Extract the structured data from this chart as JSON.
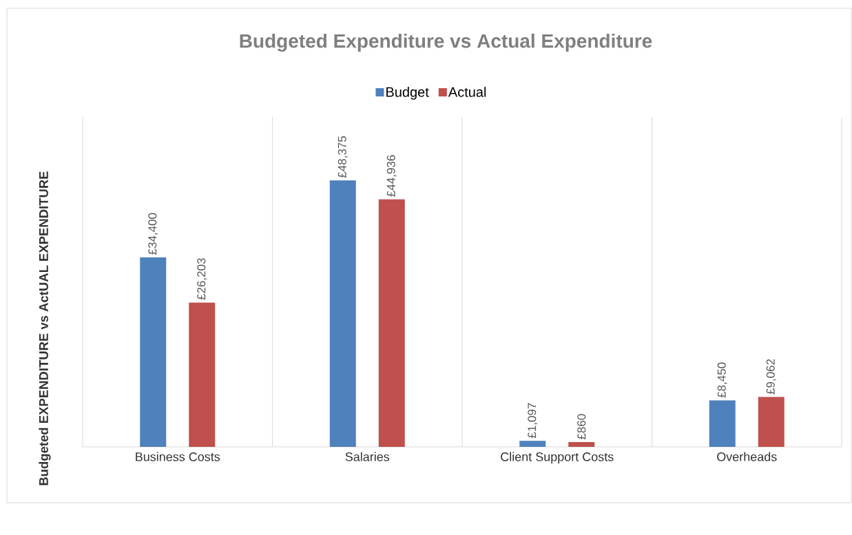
{
  "chart_data": {
    "type": "bar",
    "title": "Budgeted Expenditure vs Actual Expenditure",
    "ylabel": "Budgeted EXPENDITURE vs ActUAL EXPENDITURE",
    "categories": [
      "Business Costs",
      "Salaries",
      "Client Support Costs",
      "Overheads"
    ],
    "series": [
      {
        "name": "Budget",
        "color": "#4f81bd",
        "values": [
          34400,
          48375,
          1097,
          8450
        ],
        "value_labels": [
          "£34,400",
          "£48,375",
          "£1,097",
          "£8,450"
        ]
      },
      {
        "name": "Actual",
        "color": "#c0504d",
        "values": [
          26203,
          44936,
          860,
          9062
        ],
        "value_labels": [
          "£26,203",
          "£44,936",
          "£860",
          "£9,062"
        ]
      }
    ],
    "grid": "x",
    "legend": "top"
  }
}
